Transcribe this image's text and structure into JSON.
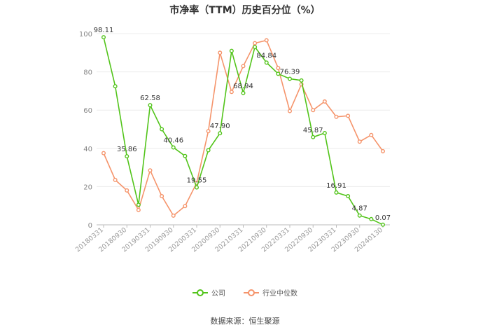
{
  "chart_data": {
    "type": "line",
    "title": "市净率（TTM）历史百分位（%）",
    "ylim": [
      0,
      100
    ],
    "yticks": [
      0,
      20,
      40,
      60,
      80,
      100
    ],
    "x_labels": [
      "20180331",
      "20180930",
      "20190331",
      "20190930",
      "20200331",
      "20200930",
      "20210331",
      "20210930",
      "20220331",
      "20220930",
      "20230331",
      "20230930",
      "20240130"
    ],
    "grid": "horizontal",
    "legend_position": "bottom",
    "series": [
      {
        "name": "公司",
        "color": "#52c41a",
        "values": [
          98.11,
          72.5,
          35.86,
          10.5,
          62.58,
          50.0,
          40.46,
          36.0,
          19.55,
          39.0,
          47.9,
          91.0,
          68.94,
          93.0,
          84.84,
          79.0,
          76.39,
          75.5,
          45.87,
          48.0,
          16.91,
          15.0,
          4.87,
          3.0,
          0.07
        ],
        "data_labels": [
          {
            "index": 0,
            "text": "98.11"
          },
          {
            "index": 2,
            "text": "35.86"
          },
          {
            "index": 4,
            "text": "62.58"
          },
          {
            "index": 6,
            "text": "40.46"
          },
          {
            "index": 8,
            "text": "19.55"
          },
          {
            "index": 10,
            "text": "47.90"
          },
          {
            "index": 12,
            "text": "68.94"
          },
          {
            "index": 14,
            "text": "84.84"
          },
          {
            "index": 16,
            "text": "76.39"
          },
          {
            "index": 18,
            "text": "45.87"
          },
          {
            "index": 20,
            "text": "16.91"
          },
          {
            "index": 22,
            "text": "4.87"
          },
          {
            "index": 24,
            "text": "0.07"
          }
        ]
      },
      {
        "name": "行业中位数",
        "color": "#f5946b",
        "values": [
          37.5,
          23.5,
          18.0,
          7.8,
          28.5,
          15.0,
          4.8,
          9.8,
          22.0,
          49.0,
          90.0,
          69.5,
          83.0,
          95.0,
          96.5,
          82.0,
          59.5,
          73.5,
          60.0,
          64.5,
          56.5,
          57.0,
          43.5,
          47.0,
          38.5
        ]
      }
    ]
  },
  "legend": {
    "company": "公司",
    "industry": "行业中位数"
  },
  "source": "数据来源：恒生聚源"
}
